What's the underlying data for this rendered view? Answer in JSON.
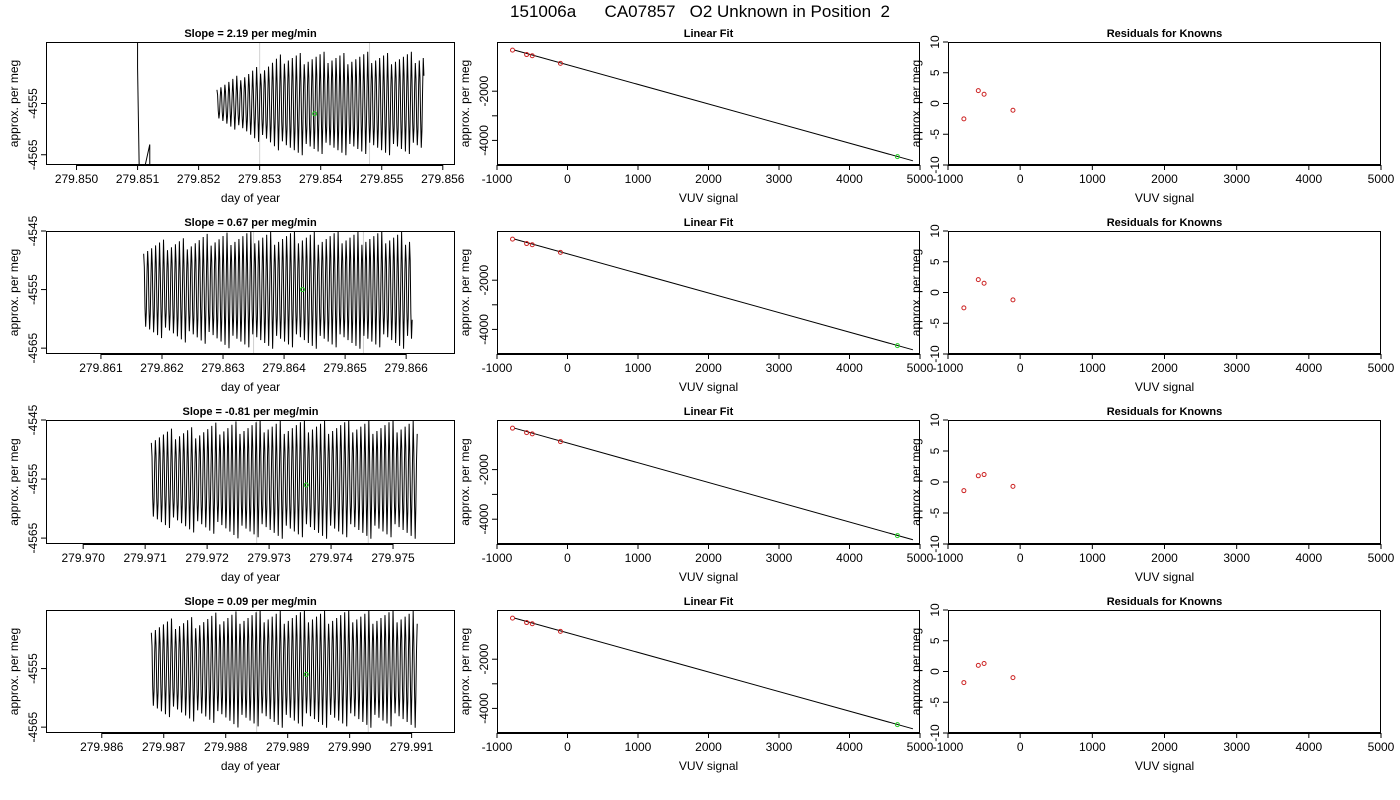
{
  "title": "151006a      CA07857   O2 Unknown in Position  2",
  "colors": {
    "trace": "#000000",
    "known_points": "#cc2222",
    "unknown_point": "#22cc22",
    "frame": "#000000",
    "marker_line": "#d0d0d0"
  },
  "fit_line": {
    "x": [
      -750,
      4900
    ],
    "y": [
      -330,
      -4830
    ]
  },
  "chart_data": [
    {
      "type": "line",
      "panel": "trace",
      "title": "Slope =  2.19  per meg/min",
      "xlabel": "day of year",
      "ylabel": "approx. per meg",
      "xlim": [
        279.8495,
        279.8562
      ],
      "ylim": [
        -4567,
        -4543
      ],
      "xticks": [
        "279.850",
        "279.851",
        "279.852",
        "279.853",
        "279.854",
        "279.855",
        "279.856"
      ],
      "xtick_values": [
        279.85,
        279.851,
        279.852,
        279.853,
        279.854,
        279.855,
        279.856
      ],
      "yticks": [
        -4555,
        -4565
      ],
      "ytick_labels": [
        "-4555",
        "-4565"
      ],
      "marker_lines": [
        279.853,
        279.8548
      ],
      "trace": {
        "start": 279.851,
        "end": 279.8557,
        "gap_from": 279.8512,
        "gap_to": 279.8523,
        "osc_start": 279.8523,
        "center": -4555,
        "amplitude": 9,
        "period": 6.5e-05,
        "envelope_start": 0.35
      },
      "unknown_point": {
        "x": 279.8539,
        "y": -4557
      }
    },
    {
      "type": "scatter",
      "panel": "fit",
      "title": "Linear Fit",
      "xlabel": "VUV signal",
      "ylabel": "approx. per meg",
      "xlim": [
        -1000,
        5000
      ],
      "ylim": [
        -5000,
        0
      ],
      "xticks": [
        -1000,
        0,
        1000,
        2000,
        3000,
        4000,
        5000
      ],
      "yticks": [
        -2000,
        -3000,
        -4000
      ],
      "ytick_labels": [
        "-2000",
        "",
        "-4000"
      ],
      "knowns": {
        "x": [
          -780,
          -580,
          -500,
          -100
        ],
        "y": [
          -330,
          -510,
          -560,
          -870
        ]
      },
      "unknown": {
        "x": 4680,
        "y": -4660
      }
    },
    {
      "type": "scatter",
      "panel": "residuals",
      "title": "Residuals for Knowns",
      "xlabel": "VUV signal",
      "ylabel": "approx. per meg",
      "xlim": [
        -1000,
        5000
      ],
      "ylim": [
        -10,
        10
      ],
      "xticks": [
        -1000,
        0,
        1000,
        2000,
        3000,
        4000,
        5000
      ],
      "yticks": [
        10,
        5,
        0,
        -5,
        -10
      ],
      "knowns": {
        "x": [
          -780,
          -580,
          -500,
          -100
        ],
        "y": [
          -2.5,
          2.1,
          1.5,
          -1.1
        ]
      }
    },
    {
      "type": "line",
      "panel": "trace",
      "title": "Slope =  0.67  per meg/min",
      "xlabel": "day of year",
      "ylabel": "approx. per meg",
      "xlim": [
        279.8601,
        279.8668
      ],
      "ylim": [
        -4566,
        -4545
      ],
      "xticks": [
        "279.861",
        "279.862",
        "279.863",
        "279.864",
        "279.865",
        "279.866"
      ],
      "xtick_values": [
        279.861,
        279.862,
        279.863,
        279.864,
        279.865,
        279.866
      ],
      "yticks": [
        -4545,
        -4555,
        -4565
      ],
      "ytick_labels": [
        "-4545",
        "-4555",
        "-4565"
      ],
      "marker_lines": [
        279.8635,
        279.8653
      ],
      "trace": {
        "start": 279.8617,
        "end": 279.8661,
        "osc_start": 279.8617,
        "center": -4555,
        "amplitude": 9,
        "period": 6.5e-05,
        "envelope_start": 0.8
      },
      "unknown_point": {
        "x": 279.8643,
        "y": -4555
      }
    },
    {
      "type": "scatter",
      "panel": "fit",
      "title": "Linear Fit",
      "xlabel": "VUV signal",
      "ylabel": "approx. per meg",
      "xlim": [
        -1000,
        5000
      ],
      "ylim": [
        -5000,
        0
      ],
      "xticks": [
        -1000,
        0,
        1000,
        2000,
        3000,
        4000,
        5000
      ],
      "yticks": [
        -2000,
        -3000,
        -4000
      ],
      "ytick_labels": [
        "-2000",
        "",
        "-4000"
      ],
      "knowns": {
        "x": [
          -780,
          -580,
          -500,
          -100
        ],
        "y": [
          -330,
          -510,
          -560,
          -870
        ]
      },
      "unknown": {
        "x": 4680,
        "y": -4660
      }
    },
    {
      "type": "scatter",
      "panel": "residuals",
      "title": "Residuals for Knowns",
      "xlabel": "VUV signal",
      "ylabel": "approx. per meg",
      "xlim": [
        -1000,
        5000
      ],
      "ylim": [
        -10,
        10
      ],
      "xticks": [
        -1000,
        0,
        1000,
        2000,
        3000,
        4000,
        5000
      ],
      "yticks": [
        10,
        5,
        0,
        -5,
        -10
      ],
      "knowns": {
        "x": [
          -780,
          -580,
          -500,
          -100
        ],
        "y": [
          -2.5,
          2.1,
          1.5,
          -1.2
        ]
      }
    },
    {
      "type": "line",
      "panel": "trace",
      "title": "Slope =  -0.81  per meg/min",
      "xlabel": "day of year",
      "ylabel": "approx. per meg",
      "xlim": [
        279.9694,
        279.976
      ],
      "ylim": [
        -4566,
        -4545
      ],
      "xticks": [
        "279.970",
        "279.971",
        "279.972",
        "279.973",
        "279.974",
        "279.975"
      ],
      "xtick_values": [
        279.97,
        279.971,
        279.972,
        279.973,
        279.974,
        279.975
      ],
      "yticks": [
        -4545,
        -4555,
        -4565
      ],
      "ytick_labels": [
        "-4545",
        "-4555",
        "-4565"
      ],
      "marker_lines": [
        279.9728,
        279.9746
      ],
      "trace": {
        "start": 279.9711,
        "end": 279.9754,
        "osc_start": 279.9711,
        "center": -4555,
        "amplitude": 9,
        "period": 6.5e-05,
        "envelope_start": 0.8
      },
      "unknown_point": {
        "x": 279.9736,
        "y": -4556
      }
    },
    {
      "type": "scatter",
      "panel": "fit",
      "title": "Linear Fit",
      "xlabel": "VUV signal",
      "ylabel": "approx. per meg",
      "xlim": [
        -1000,
        5000
      ],
      "ylim": [
        -5000,
        0
      ],
      "xticks": [
        -1000,
        0,
        1000,
        2000,
        3000,
        4000,
        5000
      ],
      "yticks": [
        -2000,
        -3000,
        -4000
      ],
      "ytick_labels": [
        "-2000",
        "",
        "-4000"
      ],
      "knowns": {
        "x": [
          -780,
          -580,
          -500,
          -100
        ],
        "y": [
          -330,
          -510,
          -560,
          -870
        ]
      },
      "unknown": {
        "x": 4680,
        "y": -4660
      }
    },
    {
      "type": "scatter",
      "panel": "residuals",
      "title": "Residuals for Knowns",
      "xlabel": "VUV signal",
      "ylabel": "approx. per meg",
      "xlim": [
        -1000,
        5000
      ],
      "ylim": [
        -10,
        10
      ],
      "xticks": [
        -1000,
        0,
        1000,
        2000,
        3000,
        4000,
        5000
      ],
      "yticks": [
        10,
        5,
        0,
        -5,
        -10
      ],
      "knowns": {
        "x": [
          -780,
          -580,
          -500,
          -100
        ],
        "y": [
          -1.4,
          1.0,
          1.2,
          -0.7
        ]
      }
    },
    {
      "type": "line",
      "panel": "trace",
      "title": "Slope =  0.09  per meg/min",
      "xlabel": "day of year",
      "ylabel": "approx. per meg",
      "xlim": [
        279.9851,
        279.9917
      ],
      "ylim": [
        -4566,
        -4545
      ],
      "xticks": [
        "279.986",
        "279.987",
        "279.988",
        "279.989",
        "279.990",
        "279.991"
      ],
      "xtick_values": [
        279.986,
        279.987,
        279.988,
        279.989,
        279.99,
        279.991
      ],
      "yticks": [
        -4555,
        -4565
      ],
      "ytick_labels": [
        "-4555",
        "-4565"
      ],
      "marker_lines": [
        279.9885,
        279.9903
      ],
      "trace": {
        "start": 279.9868,
        "end": 279.9911,
        "osc_start": 279.9868,
        "center": -4555,
        "amplitude": 9,
        "period": 6.5e-05,
        "envelope_start": 0.8
      },
      "unknown_point": {
        "x": 279.9893,
        "y": -4556
      }
    },
    {
      "type": "scatter",
      "panel": "fit",
      "title": "Linear Fit",
      "xlabel": "VUV signal",
      "ylabel": "approx. per meg",
      "xlim": [
        -1000,
        5000
      ],
      "ylim": [
        -5000,
        0
      ],
      "xticks": [
        -1000,
        0,
        1000,
        2000,
        3000,
        4000,
        5000
      ],
      "yticks": [
        -2000,
        -3000,
        -4000
      ],
      "ytick_labels": [
        "-2000",
        "",
        "-4000"
      ],
      "knowns": {
        "x": [
          -780,
          -580,
          -500,
          -100
        ],
        "y": [
          -330,
          -510,
          -560,
          -870
        ]
      },
      "unknown": {
        "x": 4680,
        "y": -4660
      }
    },
    {
      "type": "scatter",
      "panel": "residuals",
      "title": "Residuals for Knowns",
      "xlabel": "VUV signal",
      "ylabel": "approx. per meg",
      "xlim": [
        -1000,
        5000
      ],
      "ylim": [
        -10,
        10
      ],
      "xticks": [
        -1000,
        0,
        1000,
        2000,
        3000,
        4000,
        5000
      ],
      "yticks": [
        10,
        5,
        0,
        -5,
        -10
      ],
      "knowns": {
        "x": [
          -780,
          -580,
          -500,
          -100
        ],
        "y": [
          -1.8,
          1.0,
          1.3,
          -1.0
        ]
      }
    }
  ]
}
